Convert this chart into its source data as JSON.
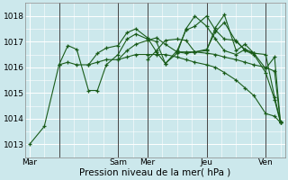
{
  "xlabel": "Pression niveau de la mer( hPa )",
  "bg_color": "#cce8ec",
  "grid_color": "#ffffff",
  "line_color": "#1a5c1a",
  "ylim": [
    1012.5,
    1018.5
  ],
  "lines": [
    {
      "x": [
        0,
        0.5,
        1.0,
        1.3,
        1.6,
        2.0,
        2.3,
        2.6,
        3.0,
        3.3,
        3.6,
        4.0,
        4.3,
        4.6,
        5.0,
        5.3,
        5.6,
        6.0,
        6.3,
        6.6,
        7.0,
        7.3,
        7.6,
        8.0,
        8.3,
        8.5
      ],
      "y": [
        1013.0,
        1013.7,
        1016.1,
        1016.2,
        1016.1,
        1016.1,
        1016.2,
        1016.3,
        1016.3,
        1016.4,
        1016.5,
        1016.5,
        1016.5,
        1016.5,
        1016.4,
        1016.3,
        1016.2,
        1016.1,
        1016.0,
        1015.8,
        1015.5,
        1015.2,
        1014.9,
        1014.2,
        1014.1,
        1013.85
      ]
    },
    {
      "x": [
        1.0,
        1.3,
        1.6,
        2.0,
        2.3,
        2.6,
        3.0,
        3.3,
        3.6,
        4.0,
        4.3,
        4.6,
        5.0,
        5.3,
        5.6,
        6.0,
        6.3,
        6.6,
        7.0,
        7.3,
        7.6,
        8.0,
        8.3,
        8.5
      ],
      "y": [
        1016.1,
        1016.85,
        1016.7,
        1015.1,
        1015.1,
        1016.1,
        1016.5,
        1017.1,
        1017.3,
        1017.1,
        1017.0,
        1016.15,
        1016.65,
        1017.45,
        1017.6,
        1018.0,
        1017.45,
        1017.1,
        1017.05,
        1016.65,
        1016.5,
        1015.8,
        1014.75,
        1013.85
      ]
    },
    {
      "x": [
        2.0,
        2.3,
        2.6,
        3.0,
        3.3,
        3.6,
        4.0,
        4.3,
        4.6,
        5.0,
        5.3,
        5.6,
        6.0,
        6.3,
        6.6,
        7.0,
        7.3,
        7.5
      ],
      "y": [
        1016.1,
        1016.55,
        1016.75,
        1016.85,
        1017.35,
        1017.5,
        1017.15,
        1016.6,
        1016.15,
        1016.55,
        1017.5,
        1018.0,
        1017.6,
        1017.1,
        1016.65,
        1016.5,
        1016.7,
        1016.6
      ]
    },
    {
      "x": [
        3.0,
        3.3,
        3.6,
        4.0,
        4.3,
        4.6,
        5.0,
        5.3,
        5.6,
        6.0,
        6.3,
        6.6,
        7.0,
        7.3,
        7.6,
        8.0,
        8.3,
        8.5
      ],
      "y": [
        1016.3,
        1016.65,
        1016.9,
        1017.05,
        1017.15,
        1016.9,
        1016.6,
        1016.55,
        1016.6,
        1016.7,
        1017.4,
        1017.75,
        1017.0,
        1016.7,
        1016.55,
        1015.95,
        1016.4,
        1013.85
      ]
    },
    {
      "x": [
        4.0,
        4.3,
        4.6,
        5.0,
        5.3,
        5.6,
        6.0,
        6.3,
        6.6,
        7.0,
        7.3,
        7.6,
        8.0,
        8.3,
        8.5
      ],
      "y": [
        1016.3,
        1016.65,
        1017.05,
        1017.1,
        1017.05,
        1016.6,
        1016.65,
        1017.55,
        1018.05,
        1016.65,
        1016.9,
        1016.55,
        1016.5,
        1014.85,
        1013.9
      ]
    },
    {
      "x": [
        5.0,
        5.3,
        5.6,
        6.0,
        6.3,
        6.6,
        7.0,
        7.3,
        7.6,
        8.0,
        8.3,
        8.5
      ],
      "y": [
        1016.6,
        1016.6,
        1016.6,
        1016.55,
        1016.5,
        1016.4,
        1016.3,
        1016.2,
        1016.1,
        1016.0,
        1015.85,
        1013.85
      ]
    }
  ],
  "yticks": [
    1013,
    1014,
    1015,
    1016,
    1017,
    1018
  ],
  "day_tick_positions": [
    0.0,
    1.0,
    3.0,
    4.0,
    6.0,
    8.0
  ],
  "day_tick_labels": [
    "Mar",
    "",
    "Sam",
    "Mer",
    "Jeu",
    "Ven"
  ],
  "vline_positions": [
    1.0,
    3.0,
    4.0,
    6.0,
    8.0
  ],
  "tick_fontsize": 6.5,
  "label_fontsize": 7.5
}
